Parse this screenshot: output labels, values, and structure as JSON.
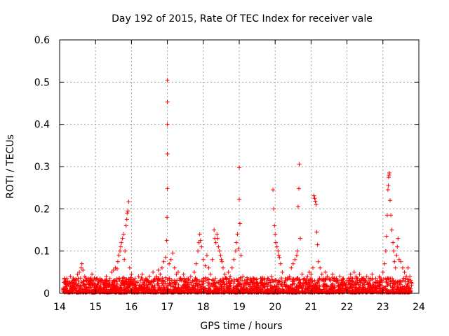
{
  "chart_data": {
    "type": "scatter",
    "title": "Day 192 of 2015, Rate Of TEC Index for receiver vale",
    "xlabel": "GPS time / hours",
    "ylabel": "ROTI / TECUs",
    "xlim": [
      14,
      24
    ],
    "ylim": [
      0,
      0.6
    ],
    "xticks": [
      "14",
      "15",
      "16",
      "17",
      "18",
      "19",
      "20",
      "21",
      "22",
      "23",
      "24"
    ],
    "yticks": [
      "0",
      "0.1",
      "0.2",
      "0.3",
      "0.4",
      "0.5",
      "0.6"
    ],
    "grid": true,
    "marker": "plus",
    "series": [
      {
        "name": "ROTI",
        "color": "#ff0000",
        "points": [
          [
            14.1,
            0.012
          ],
          [
            14.15,
            0.025
          ],
          [
            14.2,
            0.035
          ],
          [
            14.25,
            0.02
          ],
          [
            14.3,
            0.04
          ],
          [
            14.35,
            0.015
          ],
          [
            14.4,
            0.03
          ],
          [
            14.45,
            0.022
          ],
          [
            14.5,
            0.045
          ],
          [
            14.55,
            0.05
          ],
          [
            14.6,
            0.06
          ],
          [
            14.62,
            0.07
          ],
          [
            14.65,
            0.055
          ],
          [
            14.7,
            0.04
          ],
          [
            14.75,
            0.03
          ],
          [
            14.8,
            0.035
          ],
          [
            14.85,
            0.025
          ],
          [
            14.9,
            0.045
          ],
          [
            14.95,
            0.03
          ],
          [
            15.0,
            0.02
          ],
          [
            15.05,
            0.035
          ],
          [
            15.1,
            0.015
          ],
          [
            15.15,
            0.025
          ],
          [
            15.2,
            0.03
          ],
          [
            15.25,
            0.02
          ],
          [
            15.3,
            0.04
          ],
          [
            15.35,
            0.025
          ],
          [
            15.4,
            0.035
          ],
          [
            15.45,
            0.05
          ],
          [
            15.5,
            0.055
          ],
          [
            15.55,
            0.06
          ],
          [
            15.6,
            0.058
          ],
          [
            15.62,
            0.075
          ],
          [
            15.65,
            0.09
          ],
          [
            15.68,
            0.1
          ],
          [
            15.7,
            0.11
          ],
          [
            15.72,
            0.12
          ],
          [
            15.75,
            0.13
          ],
          [
            15.78,
            0.14
          ],
          [
            15.8,
            0.08
          ],
          [
            15.82,
            0.1
          ],
          [
            15.85,
            0.16
          ],
          [
            15.87,
            0.175
          ],
          [
            15.88,
            0.19
          ],
          [
            15.9,
            0.195
          ],
          [
            15.92,
            0.217
          ],
          [
            15.95,
            0.06
          ],
          [
            16.0,
            0.045
          ],
          [
            16.05,
            0.03
          ],
          [
            16.1,
            0.035
          ],
          [
            16.15,
            0.025
          ],
          [
            16.2,
            0.04
          ],
          [
            16.25,
            0.03
          ],
          [
            16.3,
            0.045
          ],
          [
            16.35,
            0.02
          ],
          [
            16.4,
            0.035
          ],
          [
            16.45,
            0.03
          ],
          [
            16.5,
            0.04
          ],
          [
            16.55,
            0.025
          ],
          [
            16.6,
            0.05
          ],
          [
            16.65,
            0.035
          ],
          [
            16.7,
            0.04
          ],
          [
            16.75,
            0.055
          ],
          [
            16.8,
            0.045
          ],
          [
            16.85,
            0.06
          ],
          [
            16.9,
            0.075
          ],
          [
            16.95,
            0.085
          ],
          [
            16.98,
            0.125
          ],
          [
            16.99,
            0.18
          ],
          [
            17.0,
            0.248
          ],
          [
            17.0,
            0.33
          ],
          [
            17.0,
            0.4
          ],
          [
            17.0,
            0.453
          ],
          [
            17.0,
            0.505
          ],
          [
            17.05,
            0.07
          ],
          [
            17.1,
            0.08
          ],
          [
            17.15,
            0.095
          ],
          [
            17.2,
            0.06
          ],
          [
            17.25,
            0.045
          ],
          [
            17.3,
            0.05
          ],
          [
            17.35,
            0.035
          ],
          [
            17.4,
            0.03
          ],
          [
            17.45,
            0.045
          ],
          [
            17.5,
            0.025
          ],
          [
            17.55,
            0.035
          ],
          [
            17.6,
            0.03
          ],
          [
            17.65,
            0.04
          ],
          [
            17.7,
            0.03
          ],
          [
            17.75,
            0.05
          ],
          [
            17.8,
            0.07
          ],
          [
            17.85,
            0.1
          ],
          [
            17.88,
            0.12
          ],
          [
            17.9,
            0.14
          ],
          [
            17.92,
            0.125
          ],
          [
            17.95,
            0.11
          ],
          [
            18.0,
            0.08
          ],
          [
            18.05,
            0.065
          ],
          [
            18.1,
            0.09
          ],
          [
            18.15,
            0.06
          ],
          [
            18.2,
            0.045
          ],
          [
            18.25,
            0.08
          ],
          [
            18.3,
            0.15
          ],
          [
            18.32,
            0.13
          ],
          [
            18.35,
            0.12
          ],
          [
            18.38,
            0.14
          ],
          [
            18.4,
            0.13
          ],
          [
            18.42,
            0.11
          ],
          [
            18.45,
            0.1
          ],
          [
            18.48,
            0.09
          ],
          [
            18.5,
            0.08
          ],
          [
            18.52,
            0.075
          ],
          [
            18.55,
            0.06
          ],
          [
            18.6,
            0.045
          ],
          [
            18.65,
            0.035
          ],
          [
            18.7,
            0.05
          ],
          [
            18.75,
            0.04
          ],
          [
            18.8,
            0.06
          ],
          [
            18.85,
            0.08
          ],
          [
            18.9,
            0.1
          ],
          [
            18.92,
            0.12
          ],
          [
            18.95,
            0.14
          ],
          [
            18.98,
            0.105
          ],
          [
            19.0,
            0.298
          ],
          [
            19.0,
            0.223
          ],
          [
            19.02,
            0.165
          ],
          [
            19.05,
            0.09
          ],
          [
            19.1,
            0.04
          ],
          [
            19.15,
            0.03
          ],
          [
            19.2,
            0.025
          ],
          [
            19.3,
            0.02
          ],
          [
            19.4,
            0.025
          ],
          [
            19.5,
            0.02
          ],
          [
            19.6,
            0.025
          ],
          [
            19.7,
            0.02
          ],
          [
            19.8,
            0.03
          ],
          [
            19.9,
            0.04
          ],
          [
            19.94,
            0.245
          ],
          [
            19.96,
            0.2
          ],
          [
            19.98,
            0.16
          ],
          [
            20.0,
            0.14
          ],
          [
            20.02,
            0.12
          ],
          [
            20.05,
            0.11
          ],
          [
            20.08,
            0.1
          ],
          [
            20.1,
            0.09
          ],
          [
            20.12,
            0.085
          ],
          [
            20.15,
            0.07
          ],
          [
            20.2,
            0.05
          ],
          [
            20.3,
            0.03
          ],
          [
            20.4,
            0.04
          ],
          [
            20.45,
            0.06
          ],
          [
            20.5,
            0.07
          ],
          [
            20.55,
            0.08
          ],
          [
            20.6,
            0.09
          ],
          [
            20.62,
            0.1
          ],
          [
            20.64,
            0.205
          ],
          [
            20.66,
            0.248
          ],
          [
            20.67,
            0.306
          ],
          [
            20.7,
            0.13
          ],
          [
            20.75,
            0.045
          ],
          [
            20.8,
            0.035
          ],
          [
            20.85,
            0.03
          ],
          [
            20.9,
            0.04
          ],
          [
            20.95,
            0.05
          ],
          [
            21.0,
            0.045
          ],
          [
            21.05,
            0.06
          ],
          [
            21.08,
            0.231
          ],
          [
            21.1,
            0.225
          ],
          [
            21.12,
            0.218
          ],
          [
            21.14,
            0.21
          ],
          [
            21.16,
            0.145
          ],
          [
            21.18,
            0.115
          ],
          [
            21.2,
            0.075
          ],
          [
            21.25,
            0.06
          ],
          [
            21.3,
            0.045
          ],
          [
            21.35,
            0.035
          ],
          [
            21.4,
            0.05
          ],
          [
            21.45,
            0.04
          ],
          [
            21.5,
            0.035
          ],
          [
            21.55,
            0.03
          ],
          [
            21.6,
            0.045
          ],
          [
            21.65,
            0.035
          ],
          [
            21.7,
            0.03
          ],
          [
            21.75,
            0.025
          ],
          [
            21.8,
            0.04
          ],
          [
            21.85,
            0.03
          ],
          [
            21.9,
            0.035
          ],
          [
            21.95,
            0.02
          ],
          [
            22.0,
            0.03
          ],
          [
            22.05,
            0.035
          ],
          [
            22.1,
            0.045
          ],
          [
            22.15,
            0.03
          ],
          [
            22.2,
            0.05
          ],
          [
            22.25,
            0.04
          ],
          [
            22.3,
            0.035
          ],
          [
            22.35,
            0.045
          ],
          [
            22.4,
            0.03
          ],
          [
            22.45,
            0.025
          ],
          [
            22.5,
            0.03
          ],
          [
            22.55,
            0.04
          ],
          [
            22.6,
            0.02
          ],
          [
            22.65,
            0.03
          ],
          [
            22.7,
            0.045
          ],
          [
            22.75,
            0.025
          ],
          [
            22.8,
            0.035
          ],
          [
            22.85,
            0.03
          ],
          [
            22.9,
            0.04
          ],
          [
            22.95,
            0.03
          ],
          [
            23.0,
            0.05
          ],
          [
            23.05,
            0.07
          ],
          [
            23.08,
            0.1
          ],
          [
            23.1,
            0.135
          ],
          [
            23.12,
            0.185
          ],
          [
            23.14,
            0.245
          ],
          [
            23.15,
            0.255
          ],
          [
            23.16,
            0.275
          ],
          [
            23.17,
            0.28
          ],
          [
            23.18,
            0.285
          ],
          [
            23.2,
            0.22
          ],
          [
            23.22,
            0.185
          ],
          [
            23.25,
            0.15
          ],
          [
            23.28,
            0.12
          ],
          [
            23.3,
            0.1
          ],
          [
            23.32,
            0.075
          ],
          [
            23.35,
            0.06
          ],
          [
            23.38,
            0.09
          ],
          [
            23.4,
            0.11
          ],
          [
            23.42,
            0.13
          ],
          [
            23.45,
            0.08
          ],
          [
            23.5,
            0.075
          ],
          [
            23.55,
            0.06
          ],
          [
            23.6,
            0.05
          ],
          [
            23.65,
            0.04
          ],
          [
            23.7,
            0.06
          ],
          [
            23.75,
            0.04
          ],
          [
            23.78,
            0.03
          ]
        ]
      }
    ]
  }
}
